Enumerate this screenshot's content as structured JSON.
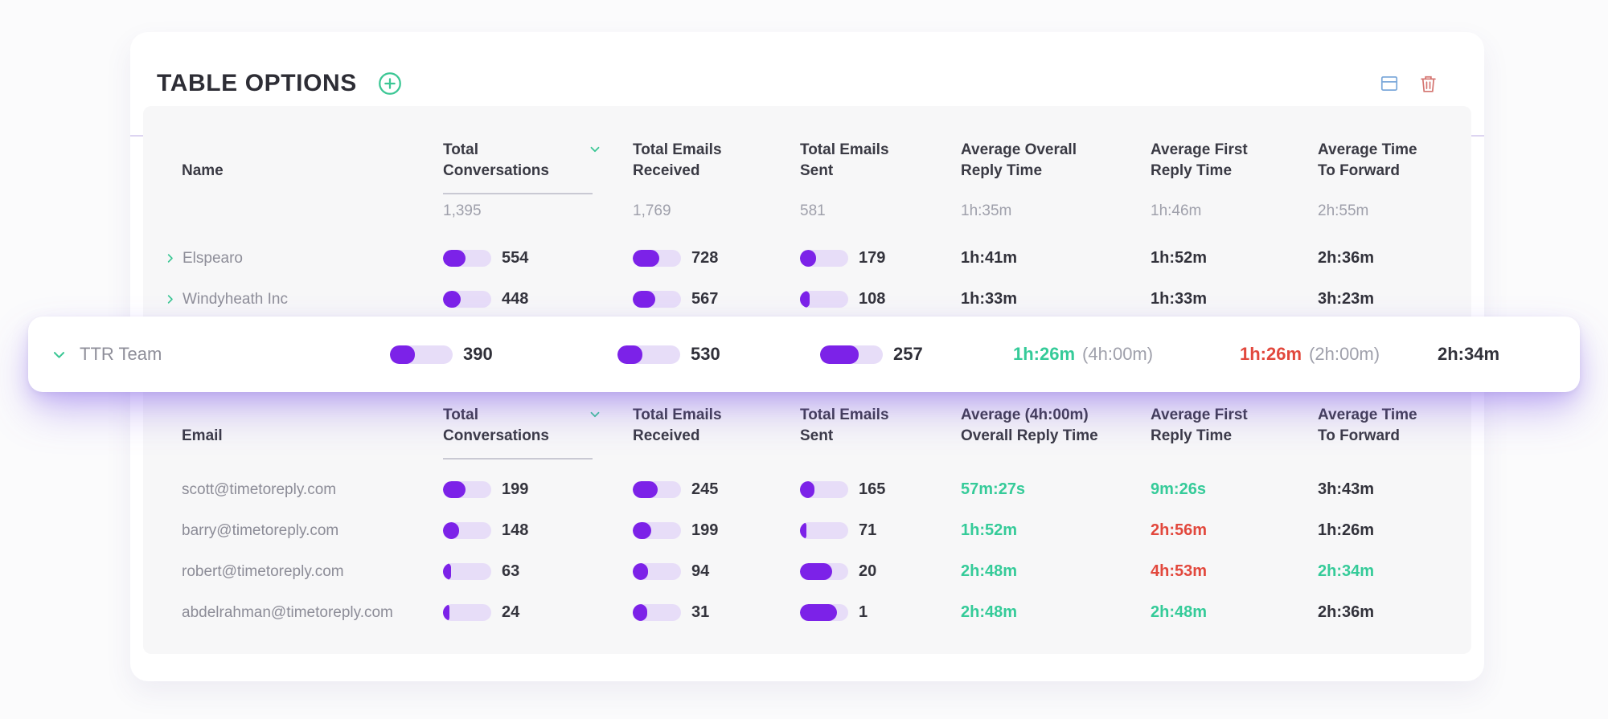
{
  "title": "TABLE OPTIONS",
  "colors": {
    "purple": "#7c22e8",
    "bar_track": "#e7ddf8",
    "green": "#35cb99",
    "red": "#e2483d"
  },
  "toolbar": {
    "add_icon": "plus-circle-icon",
    "layout_icon": "table-layout-icon",
    "delete_icon": "trash-icon"
  },
  "companies_table": {
    "headers": {
      "name": "Name",
      "conversations": [
        "Total",
        "Conversations"
      ],
      "conversations_sorted": true,
      "received": [
        "Total Emails",
        "Received"
      ],
      "sent": [
        "Total Emails",
        "Sent"
      ],
      "avg_overall": [
        "Average Overall",
        "Reply Time"
      ],
      "avg_first": [
        "Average First",
        "Reply Time"
      ],
      "forward": [
        "Average Time",
        "To Forward"
      ]
    },
    "summary": {
      "conversations": "1,395",
      "received": "1,769",
      "sent": "581",
      "avg_overall": "1h:35m",
      "avg_first": "1h:46m",
      "forward": "2h:55m"
    },
    "rows": [
      {
        "name": "Elspearo",
        "conv": {
          "v": "554",
          "pct": 46
        },
        "rec": {
          "v": "728",
          "pct": 55
        },
        "sent": {
          "v": "179",
          "pct": 33
        },
        "avg_overall": {
          "t": "1h:41m",
          "tone": "dark"
        },
        "avg_first": {
          "t": "1h:52m",
          "tone": "dark"
        },
        "forward": {
          "t": "2h:36m",
          "tone": "dark"
        }
      },
      {
        "name": "Windyheath Inc",
        "conv": {
          "v": "448",
          "pct": 36
        },
        "rec": {
          "v": "567",
          "pct": 46
        },
        "sent": {
          "v": "108",
          "pct": 20
        },
        "avg_overall": {
          "t": "1h:33m",
          "tone": "dark"
        },
        "avg_first": {
          "t": "1h:33m",
          "tone": "dark"
        },
        "forward": {
          "t": "3h:23m",
          "tone": "dark"
        }
      }
    ]
  },
  "team_row": {
    "name": "TTR Team",
    "conv": {
      "v": "390",
      "pct": 40
    },
    "rec": {
      "v": "530",
      "pct": 40
    },
    "sent": {
      "v": "257",
      "pct": 62
    },
    "avg_overall": {
      "t": "1h:26m",
      "tone": "green",
      "sub": "(4h:00m)"
    },
    "avg_first": {
      "t": "1h:26m",
      "tone": "red",
      "sub": "(2h:00m)"
    },
    "forward": {
      "t": "2h:34m",
      "tone": "dark"
    }
  },
  "members_table": {
    "headers": {
      "name": "Email",
      "conversations": [
        "Total",
        "Conversations"
      ],
      "conversations_sorted": true,
      "received": [
        "Total Emails",
        "Received"
      ],
      "sent": [
        "Total Emails",
        "Sent"
      ],
      "avg_overall": [
        "Average (4h:00m)",
        "Overall Reply Time"
      ],
      "avg_first": [
        "Average First",
        "Reply Time"
      ],
      "forward": [
        "Average Time",
        "To Forward"
      ]
    },
    "rows": [
      {
        "email": "scott@timetoreply.com",
        "conv": {
          "v": "199",
          "pct": 46
        },
        "rec": {
          "v": "245",
          "pct": 52
        },
        "sent": {
          "v": "165",
          "pct": 30
        },
        "avg_overall": {
          "t": "57m:27s",
          "tone": "green"
        },
        "avg_first": {
          "t": "9m:26s",
          "tone": "green"
        },
        "forward": {
          "t": "3h:43m",
          "tone": "dark"
        }
      },
      {
        "email": "barry@timetoreply.com",
        "conv": {
          "v": "148",
          "pct": 34
        },
        "rec": {
          "v": "199",
          "pct": 38
        },
        "sent": {
          "v": "71",
          "pct": 14
        },
        "avg_overall": {
          "t": "1h:52m",
          "tone": "green"
        },
        "avg_first": {
          "t": "2h:56m",
          "tone": "red"
        },
        "forward": {
          "t": "1h:26m",
          "tone": "dark"
        }
      },
      {
        "email": "robert@timetoreply.com",
        "conv": {
          "v": "63",
          "pct": 16
        },
        "rec": {
          "v": "94",
          "pct": 32
        },
        "sent": {
          "v": "20",
          "pct": 66
        },
        "avg_overall": {
          "t": "2h:48m",
          "tone": "green"
        },
        "avg_first": {
          "t": "4h:53m",
          "tone": "red"
        },
        "forward": {
          "t": "2h:34m",
          "tone": "green"
        }
      },
      {
        "email": "abdelrahman@timetoreply.com",
        "conv": {
          "v": "24",
          "pct": 14
        },
        "rec": {
          "v": "31",
          "pct": 30
        },
        "sent": {
          "v": "1",
          "pct": 76
        },
        "avg_overall": {
          "t": "2h:48m",
          "tone": "green"
        },
        "avg_first": {
          "t": "2h:48m",
          "tone": "green"
        },
        "forward": {
          "t": "2h:36m",
          "tone": "dark"
        }
      }
    ]
  }
}
